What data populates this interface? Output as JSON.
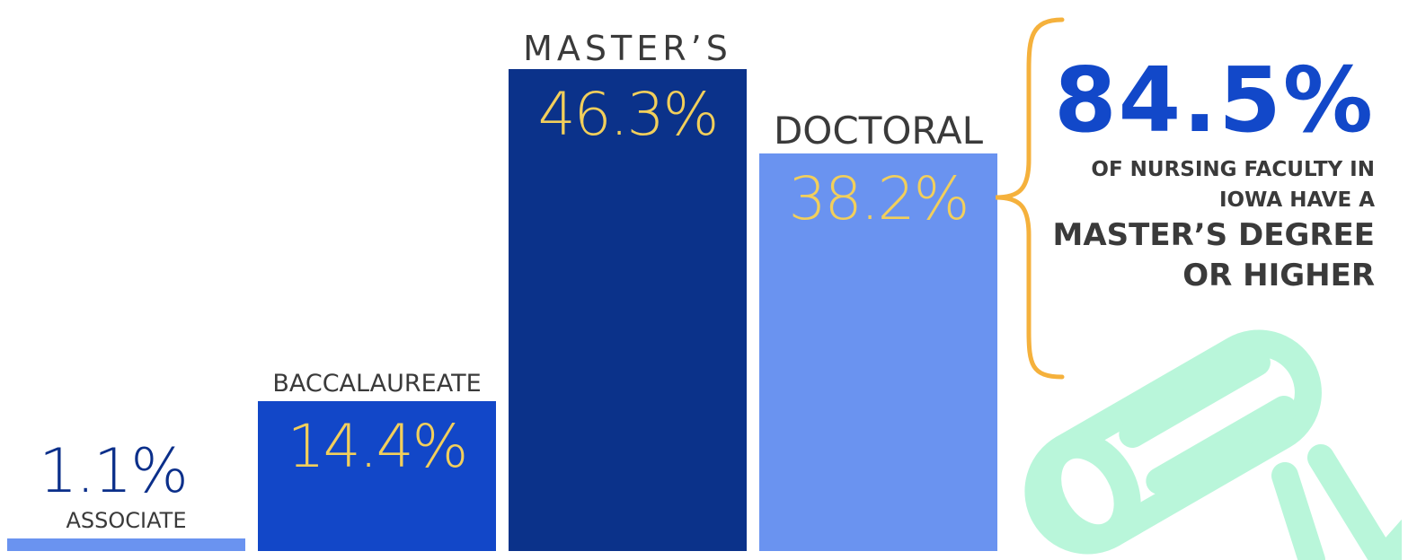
{
  "chart_data": {
    "type": "bar",
    "categories": [
      "ASSOCIATE",
      "BACCALAUREATE",
      "MASTER’S",
      "DOCTORAL"
    ],
    "values": [
      1.1,
      14.4,
      46.3,
      38.2
    ],
    "value_labels": [
      "1.1%",
      "14.4%",
      "46.3%",
      "38.2%"
    ],
    "colors": [
      "#6a93f0",
      "#1247c8",
      "#0b328a",
      "#6a93f0"
    ],
    "value_label_colors": [
      "#0b2f8a",
      "#f2cf5b",
      "#f2cf5b",
      "#f2cf5b"
    ],
    "ylim": [
      0,
      50
    ],
    "grid": false,
    "legend": "none"
  },
  "callout": {
    "big": "84.5%",
    "line1": "OF NURSING FACULTY IN",
    "line2": "IOWA HAVE A",
    "line3": "MASTER’S DEGREE",
    "line4": "OR HIGHER",
    "big_color": "#1248c9",
    "brace_color": "#f5b13c"
  },
  "decoration": {
    "icon": "diploma-icon",
    "color": "#b9f6da"
  }
}
